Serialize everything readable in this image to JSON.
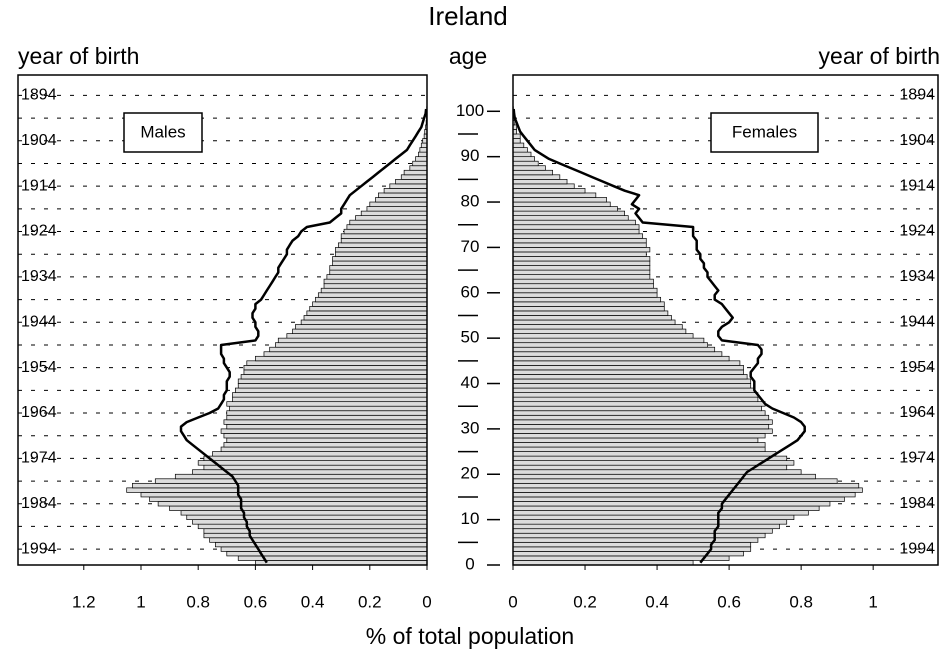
{
  "chart_data": {
    "type": "pyramid",
    "title": "Ireland",
    "xlabel": "% of total population",
    "ylabel": "age",
    "ages": [
      0,
      1,
      2,
      3,
      4,
      5,
      6,
      7,
      8,
      9,
      10,
      11,
      12,
      13,
      14,
      15,
      16,
      17,
      18,
      19,
      20,
      21,
      22,
      23,
      24,
      25,
      26,
      27,
      28,
      29,
      30,
      31,
      32,
      33,
      34,
      35,
      36,
      37,
      38,
      39,
      40,
      41,
      42,
      43,
      44,
      45,
      46,
      47,
      48,
      49,
      50,
      51,
      52,
      53,
      54,
      55,
      56,
      57,
      58,
      59,
      60,
      61,
      62,
      63,
      64,
      65,
      66,
      67,
      68,
      69,
      70,
      71,
      72,
      73,
      74,
      75,
      76,
      77,
      78,
      79,
      80,
      81,
      82,
      83,
      84,
      85,
      86,
      87,
      88,
      89,
      90,
      91,
      92,
      93,
      94,
      95,
      96,
      97,
      98,
      99,
      100
    ],
    "ylim": [
      0,
      108
    ],
    "yticks": [
      0,
      10,
      20,
      30,
      40,
      50,
      60,
      70,
      80,
      90,
      100
    ],
    "y2lim": [
      1997.5,
      1889.5
    ],
    "y2ticks": [
      1894,
      1904,
      1914,
      1924,
      1934,
      1944,
      1954,
      1964,
      1974,
      1984,
      1994
    ],
    "panels": [
      {
        "name": "Males",
        "side": "left",
        "y2label": "year of birth",
        "xlim": [
          1.43,
          0
        ],
        "xticks": [
          1.2,
          1,
          0.8,
          0.6,
          0.4,
          0.2,
          0
        ],
        "bar_color": "#dcdcdc",
        "line_color": "#000000",
        "bar_values": [
          0.6,
          0.66,
          0.7,
          0.72,
          0.74,
          0.76,
          0.78,
          0.78,
          0.8,
          0.82,
          0.84,
          0.86,
          0.9,
          0.94,
          0.97,
          1.0,
          1.05,
          1.03,
          0.95,
          0.88,
          0.82,
          0.78,
          0.8,
          0.78,
          0.75,
          0.72,
          0.71,
          0.7,
          0.71,
          0.72,
          0.7,
          0.71,
          0.7,
          0.7,
          0.69,
          0.7,
          0.68,
          0.68,
          0.67,
          0.66,
          0.66,
          0.65,
          0.64,
          0.64,
          0.63,
          0.6,
          0.57,
          0.55,
          0.53,
          0.52,
          0.49,
          0.47,
          0.46,
          0.44,
          0.43,
          0.42,
          0.41,
          0.4,
          0.39,
          0.38,
          0.37,
          0.36,
          0.36,
          0.35,
          0.34,
          0.34,
          0.33,
          0.33,
          0.32,
          0.32,
          0.31,
          0.3,
          0.3,
          0.29,
          0.28,
          0.27,
          0.25,
          0.23,
          0.21,
          0.2,
          0.18,
          0.17,
          0.15,
          0.13,
          0.11,
          0.09,
          0.08,
          0.06,
          0.05,
          0.04,
          0.03,
          0.025,
          0.02,
          0.015,
          0.01,
          0.008,
          0.005,
          0.003,
          0.002,
          0.001,
          0.001
        ],
        "line_values": [
          0.56,
          0.57,
          0.58,
          0.59,
          0.6,
          0.61,
          0.62,
          0.62,
          0.63,
          0.63,
          0.64,
          0.64,
          0.65,
          0.65,
          0.65,
          0.66,
          0.66,
          0.66,
          0.67,
          0.68,
          0.7,
          0.72,
          0.74,
          0.76,
          0.78,
          0.8,
          0.82,
          0.84,
          0.85,
          0.86,
          0.86,
          0.84,
          0.8,
          0.76,
          0.73,
          0.72,
          0.71,
          0.71,
          0.7,
          0.7,
          0.7,
          0.69,
          0.69,
          0.7,
          0.71,
          0.71,
          0.72,
          0.72,
          0.72,
          0.6,
          0.59,
          0.59,
          0.6,
          0.6,
          0.61,
          0.61,
          0.6,
          0.6,
          0.58,
          0.57,
          0.56,
          0.55,
          0.54,
          0.53,
          0.52,
          0.52,
          0.51,
          0.5,
          0.49,
          0.49,
          0.48,
          0.47,
          0.45,
          0.44,
          0.42,
          0.34,
          0.32,
          0.3,
          0.3,
          0.29,
          0.28,
          0.27,
          0.25,
          0.23,
          0.21,
          0.19,
          0.17,
          0.15,
          0.13,
          0.11,
          0.09,
          0.07,
          0.06,
          0.05,
          0.04,
          0.03,
          0.02,
          0.015,
          0.01,
          0.005,
          0.003
        ]
      },
      {
        "name": "Females",
        "side": "right",
        "y2label": "year of birth",
        "xlim": [
          0,
          1.18
        ],
        "xticks": [
          0,
          0.2,
          0.4,
          0.6,
          0.8,
          1
        ],
        "bar_color": "#dcdcdc",
        "line_color": "#000000",
        "bar_values": [
          0.5,
          0.6,
          0.64,
          0.66,
          0.66,
          0.68,
          0.7,
          0.72,
          0.74,
          0.76,
          0.78,
          0.82,
          0.85,
          0.88,
          0.92,
          0.95,
          0.97,
          0.96,
          0.9,
          0.84,
          0.8,
          0.76,
          0.78,
          0.76,
          0.73,
          0.7,
          0.7,
          0.68,
          0.7,
          0.72,
          0.71,
          0.72,
          0.71,
          0.7,
          0.69,
          0.7,
          0.68,
          0.68,
          0.67,
          0.66,
          0.66,
          0.65,
          0.64,
          0.64,
          0.63,
          0.6,
          0.58,
          0.56,
          0.54,
          0.53,
          0.5,
          0.48,
          0.47,
          0.45,
          0.44,
          0.43,
          0.42,
          0.42,
          0.41,
          0.4,
          0.4,
          0.39,
          0.39,
          0.38,
          0.38,
          0.38,
          0.38,
          0.38,
          0.37,
          0.38,
          0.37,
          0.37,
          0.36,
          0.35,
          0.35,
          0.34,
          0.32,
          0.31,
          0.29,
          0.27,
          0.26,
          0.23,
          0.2,
          0.17,
          0.15,
          0.13,
          0.11,
          0.09,
          0.07,
          0.06,
          0.05,
          0.04,
          0.03,
          0.02,
          0.02,
          0.01,
          0.01,
          0.005,
          0.003,
          0.002,
          0.001
        ],
        "line_values": [
          0.52,
          0.53,
          0.54,
          0.55,
          0.55,
          0.56,
          0.56,
          0.56,
          0.57,
          0.57,
          0.57,
          0.57,
          0.58,
          0.58,
          0.59,
          0.6,
          0.61,
          0.62,
          0.63,
          0.64,
          0.65,
          0.67,
          0.69,
          0.71,
          0.73,
          0.75,
          0.77,
          0.79,
          0.8,
          0.81,
          0.81,
          0.8,
          0.78,
          0.75,
          0.72,
          0.7,
          0.69,
          0.68,
          0.67,
          0.67,
          0.67,
          0.66,
          0.66,
          0.67,
          0.68,
          0.68,
          0.69,
          0.69,
          0.68,
          0.58,
          0.57,
          0.57,
          0.58,
          0.6,
          0.61,
          0.6,
          0.59,
          0.58,
          0.56,
          0.56,
          0.57,
          0.56,
          0.55,
          0.54,
          0.54,
          0.53,
          0.53,
          0.52,
          0.52,
          0.51,
          0.51,
          0.51,
          0.5,
          0.5,
          0.5,
          0.36,
          0.35,
          0.34,
          0.35,
          0.33,
          0.34,
          0.35,
          0.31,
          0.28,
          0.25,
          0.22,
          0.19,
          0.16,
          0.13,
          0.1,
          0.08,
          0.06,
          0.05,
          0.04,
          0.03,
          0.02,
          0.015,
          0.01,
          0.005,
          0.003,
          0.002
        ]
      }
    ]
  }
}
